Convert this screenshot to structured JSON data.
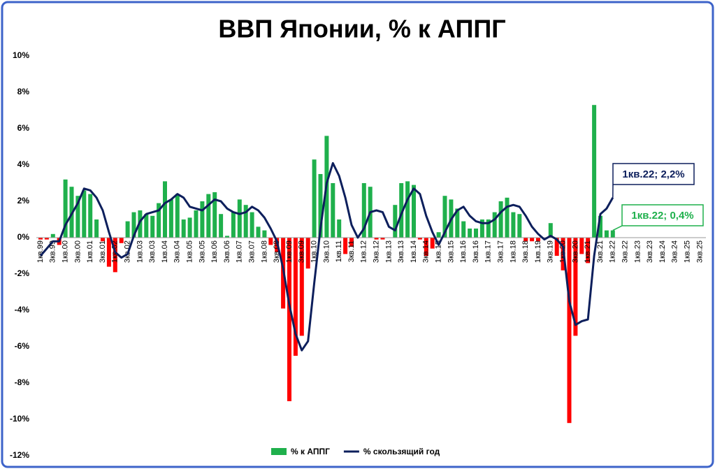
{
  "chart_data": {
    "type": "bar_line",
    "title": "ВВП Японии, % к АППГ",
    "categories": [
      "1кв.99",
      null,
      "3кв.99",
      null,
      "1кв.00",
      null,
      "3кв.00",
      null,
      "1кв.01",
      null,
      "3кв.01",
      null,
      "1кв.02",
      null,
      "3кв.02",
      null,
      "1кв.03",
      null,
      "3кв.03",
      null,
      "1кв.04",
      null,
      "3кв.04",
      null,
      "1кв.05",
      null,
      "3кв.05",
      null,
      "1кв.06",
      null,
      "3кв.06",
      null,
      "1кв.07",
      null,
      "3кв.07",
      null,
      "1кв.08",
      null,
      "3кв.08",
      null,
      "1кв.09",
      null,
      "3кв.09",
      null,
      "1кв.10",
      null,
      "3кв.10",
      null,
      "1кв.11",
      null,
      "3кв.11",
      null,
      "1кв.12",
      null,
      "3кв.12",
      null,
      "1кв.13",
      null,
      "3кв.13",
      null,
      "1кв.14",
      null,
      "3кв.14",
      null,
      "1кв.15",
      null,
      "3кв.15",
      null,
      "1кв.16",
      null,
      "3кв.16",
      null,
      "1кв.17",
      null,
      "3кв.17",
      null,
      "1кв.18",
      null,
      "3кв.18",
      null,
      "1кв.19",
      null,
      "3кв.19",
      null,
      "1кв.20",
      null,
      "3кв.20",
      null,
      "1кв.21",
      null,
      "3кв.21",
      null,
      "1кв.22",
      null,
      "3кв.22",
      null,
      "1кв.23",
      null,
      "3кв.23",
      null,
      "1кв.24",
      null,
      "3кв.24",
      null,
      "1кв.25",
      null,
      "3кв.25"
    ],
    "series": [
      {
        "name": "% к АППГ",
        "kind": "bar",
        "color": "#1fb04c",
        "negative_color": "#ff0000",
        "values": [
          -0.1,
          -0.1,
          0.2,
          -0.4,
          3.2,
          2.8,
          2.3,
          2.6,
          2.4,
          1.0,
          -0.2,
          -1.6,
          -1.9,
          -0.3,
          0.9,
          1.4,
          1.5,
          1.3,
          1.2,
          1.9,
          3.1,
          2.1,
          2.4,
          1.0,
          1.1,
          1.5,
          2.0,
          2.4,
          2.5,
          1.3,
          0.1,
          1.4,
          2.1,
          1.8,
          1.4,
          0.6,
          0.4,
          -0.4,
          -0.8,
          -3.9,
          -9.0,
          -6.5,
          -5.4,
          -1.7,
          4.3,
          3.5,
          5.6,
          3.0,
          1.0,
          -0.9,
          -0.5,
          0.0,
          3.0,
          2.8,
          -0.1,
          -0.1,
          0.0,
          1.8,
          3.0,
          3.1,
          2.9,
          -0.1,
          -1.0,
          -0.6,
          0.3,
          2.3,
          2.1,
          1.6,
          0.9,
          0.5,
          0.5,
          1.0,
          1.0,
          1.4,
          2.0,
          2.2,
          1.4,
          1.3,
          -0.2,
          -0.2,
          -0.2,
          0.0,
          0.8,
          -1.0,
          -1.8,
          -10.2,
          -5.4,
          -0.9,
          -1.4,
          7.3,
          1.2,
          0.4,
          0.4,
          null,
          null,
          null,
          null,
          null,
          null,
          null,
          null,
          null,
          null,
          null,
          null,
          null,
          null
        ]
      },
      {
        "name": "% скользящий год",
        "kind": "line",
        "color": "#0d1f5c",
        "values": [
          -1.0,
          -0.6,
          -0.2,
          -0.2,
          0.7,
          1.3,
          1.9,
          2.7,
          2.6,
          2.2,
          1.5,
          0.3,
          -0.8,
          -1.1,
          -0.9,
          0.1,
          0.9,
          1.3,
          1.4,
          1.5,
          1.9,
          2.1,
          2.4,
          2.2,
          1.7,
          1.6,
          1.5,
          1.8,
          2.1,
          2.0,
          1.6,
          1.4,
          1.3,
          1.4,
          1.7,
          1.5,
          1.1,
          0.5,
          -0.2,
          -1.7,
          -3.7,
          -5.3,
          -6.2,
          -5.7,
          -2.5,
          0.5,
          3.0,
          4.1,
          3.4,
          2.2,
          0.7,
          0.0,
          0.5,
          1.4,
          1.5,
          1.4,
          0.6,
          0.4,
          1.3,
          2.1,
          2.7,
          2.4,
          1.2,
          0.3,
          -0.4,
          0.3,
          1.0,
          1.5,
          1.7,
          1.2,
          0.9,
          0.8,
          0.8,
          1.0,
          1.4,
          1.7,
          1.8,
          1.7,
          1.2,
          0.6,
          0.2,
          -0.1,
          0.1,
          -0.1,
          -0.5,
          -3.5,
          -4.8,
          -4.6,
          -4.5,
          -1.0,
          1.3,
          1.6,
          2.2,
          null,
          null,
          null,
          null,
          null,
          null,
          null,
          null,
          null,
          null,
          null,
          null,
          null,
          null
        ]
      }
    ],
    "annotations": [
      {
        "text": "1кв.22; 2,2%",
        "series": 1,
        "index": 92,
        "color": "#0d1f5c"
      },
      {
        "text": "1кв.22; 0,4%",
        "series": 0,
        "index": 92,
        "color": "#1fb04c"
      }
    ],
    "ylim": [
      -12,
      10
    ],
    "yticks": [
      {
        "value": -12,
        "label": "-12%"
      },
      {
        "value": -10,
        "label": "-10%"
      },
      {
        "value": -8,
        "label": "-8%"
      },
      {
        "value": -6,
        "label": "-6%"
      },
      {
        "value": -4,
        "label": "-4%"
      },
      {
        "value": -2,
        "label": "-2%"
      },
      {
        "value": 0,
        "label": "0%"
      },
      {
        "value": 2,
        "label": "2%"
      },
      {
        "value": 4,
        "label": "4%"
      },
      {
        "value": 6,
        "label": "6%"
      },
      {
        "value": 8,
        "label": "8%"
      },
      {
        "value": 10,
        "label": "10%"
      }
    ],
    "legend": "bottom"
  }
}
